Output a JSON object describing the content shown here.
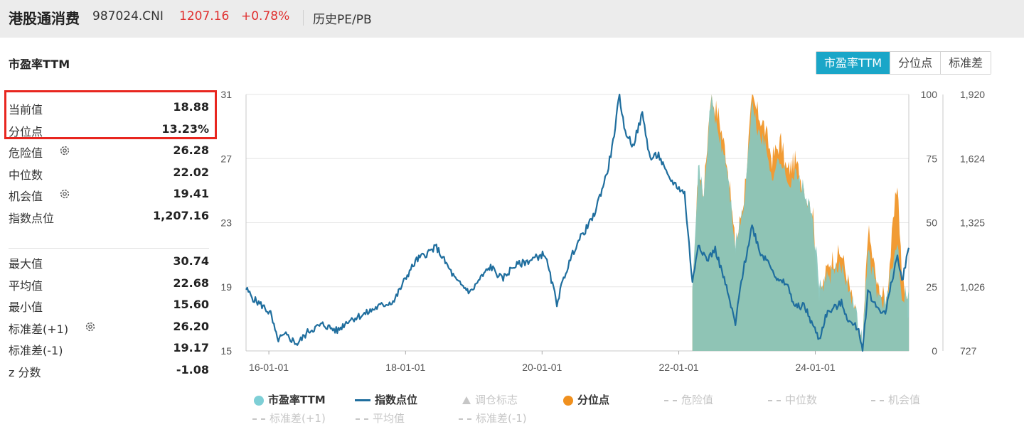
{
  "header": {
    "name": "港股通消费",
    "code": "987024.CNI",
    "price": "1207.16",
    "change": "+0.78%",
    "history_label": "历史PE/PB"
  },
  "section_title": "市盈率TTM",
  "tabs": [
    {
      "label": "市盈率TTM",
      "active": true
    },
    {
      "label": "分位点",
      "active": false
    },
    {
      "label": "标准差",
      "active": false
    }
  ],
  "stats": {
    "current": {
      "label": "当前值",
      "value": "18.88"
    },
    "percentile": {
      "label": "分位点",
      "value": "13.23%"
    },
    "danger": {
      "label": "危险值",
      "value": "26.28"
    },
    "median": {
      "label": "中位数",
      "value": "22.02"
    },
    "opportunity": {
      "label": "机会值",
      "value": "19.41"
    },
    "index_level": {
      "label": "指数点位",
      "value": "1,207.16"
    },
    "max": {
      "label": "最大值",
      "value": "30.74"
    },
    "mean": {
      "label": "平均值",
      "value": "22.68"
    },
    "min": {
      "label": "最小值",
      "value": "15.60"
    },
    "std_plus": {
      "label": "标准差(+1)",
      "value": "26.20"
    },
    "std_minus": {
      "label": "标准差(-1)",
      "value": "19.17"
    },
    "z_score": {
      "label": "z 分数",
      "value": "-1.08"
    }
  },
  "icons": {
    "gear": "gear-icon"
  },
  "colors": {
    "accent": "#1aa6c8",
    "up_red": "#e0302f",
    "highlight_red": "#e8261f",
    "pe_area": "#7ecfd6",
    "index_line": "#1f6e9e",
    "percentile_orange": "#f0901e",
    "grid": "#e6e6e6"
  },
  "chart_data": {
    "type": "line",
    "x_ticks": [
      "16-01-01",
      "18-01-01",
      "20-01-01",
      "22-01-01",
      "24-01-01"
    ],
    "y_left_ticks": [
      "15",
      "19",
      "23",
      "27",
      "31"
    ],
    "y_right1_ticks": [
      "0",
      "25",
      "50",
      "75",
      "100"
    ],
    "y_right2_ticks": [
      "727",
      "1,026",
      "1,325",
      "1,624",
      "1,920"
    ],
    "y_left_range": [
      15,
      31
    ],
    "y_right1_range": [
      0,
      100
    ],
    "y_right2_range": [
      727,
      1920
    ],
    "x_range": [
      "2015-09-01",
      "2025-05-15"
    ],
    "pe_start": "2022-03-15",
    "grid": true,
    "legend_position": "bottom",
    "series": [
      {
        "name": "指数点位",
        "axis": "right2",
        "points": [
          [
            "2015-09-01",
            1015
          ],
          [
            "2015-10-15",
            965
          ],
          [
            "2015-12-01",
            935
          ],
          [
            "2016-01-10",
            900
          ],
          [
            "2016-02-15",
            780
          ],
          [
            "2016-04-01",
            800
          ],
          [
            "2016-06-01",
            760
          ],
          [
            "2016-08-01",
            820
          ],
          [
            "2016-10-15",
            850
          ],
          [
            "2017-01-01",
            820
          ],
          [
            "2017-03-01",
            870
          ],
          [
            "2017-06-01",
            900
          ],
          [
            "2017-08-01",
            930
          ],
          [
            "2017-11-01",
            960
          ],
          [
            "2018-01-10",
            1080
          ],
          [
            "2018-03-01",
            1150
          ],
          [
            "2018-06-15",
            1210
          ],
          [
            "2018-08-01",
            1140
          ],
          [
            "2018-10-01",
            1050
          ],
          [
            "2018-12-15",
            1000
          ],
          [
            "2019-02-01",
            1060
          ],
          [
            "2019-04-01",
            1120
          ],
          [
            "2019-06-01",
            1060
          ],
          [
            "2019-08-01",
            1120
          ],
          [
            "2019-11-01",
            1150
          ],
          [
            "2020-01-15",
            1180
          ],
          [
            "2020-03-20",
            950
          ],
          [
            "2020-05-01",
            1080
          ],
          [
            "2020-07-01",
            1220
          ],
          [
            "2020-10-01",
            1350
          ],
          [
            "2020-12-15",
            1560
          ],
          [
            "2021-01-15",
            1700
          ],
          [
            "2021-02-18",
            1920
          ],
          [
            "2021-03-15",
            1760
          ],
          [
            "2021-05-01",
            1680
          ],
          [
            "2021-06-20",
            1830
          ],
          [
            "2021-08-01",
            1620
          ],
          [
            "2021-09-15",
            1640
          ],
          [
            "2021-11-01",
            1540
          ],
          [
            "2021-12-15",
            1500
          ],
          [
            "2022-02-01",
            1460
          ],
          [
            "2022-03-15",
            1040
          ],
          [
            "2022-04-15",
            1230
          ],
          [
            "2022-06-01",
            1150
          ],
          [
            "2022-07-15",
            1200
          ],
          [
            "2022-09-01",
            1060
          ],
          [
            "2022-10-31",
            850
          ],
          [
            "2022-12-01",
            1050
          ],
          [
            "2023-01-28",
            1310
          ],
          [
            "2023-03-15",
            1180
          ],
          [
            "2023-05-01",
            1140
          ],
          [
            "2023-06-15",
            1050
          ],
          [
            "2023-08-01",
            1040
          ],
          [
            "2023-09-15",
            930
          ],
          [
            "2023-11-01",
            940
          ],
          [
            "2024-01-22",
            780
          ],
          [
            "2024-03-01",
            900
          ],
          [
            "2024-05-20",
            950
          ],
          [
            "2024-07-01",
            860
          ],
          [
            "2024-08-20",
            830
          ],
          [
            "2024-09-10",
            727
          ],
          [
            "2024-10-08",
            1010
          ],
          [
            "2024-11-15",
            940
          ],
          [
            "2025-01-10",
            900
          ],
          [
            "2025-02-20",
            1080
          ],
          [
            "2025-03-15",
            1170
          ],
          [
            "2025-04-08",
            1050
          ],
          [
            "2025-05-15",
            1207
          ]
        ]
      },
      {
        "name": "市盈率TTM",
        "axis": "left",
        "points": [
          [
            "2022-03-15",
            19.5
          ],
          [
            "2022-04-15",
            26.5
          ],
          [
            "2022-05-15",
            24.5
          ],
          [
            "2022-06-20",
            30.74
          ],
          [
            "2022-08-01",
            28.5
          ],
          [
            "2022-09-15",
            26.5
          ],
          [
            "2022-10-31",
            21.5
          ],
          [
            "2022-12-15",
            24.0
          ],
          [
            "2023-01-28",
            30.3
          ],
          [
            "2023-02-20",
            29.0
          ],
          [
            "2023-04-01",
            28.0
          ],
          [
            "2023-05-15",
            26.0
          ],
          [
            "2023-07-01",
            27.0
          ],
          [
            "2023-08-01",
            25.5
          ],
          [
            "2023-09-15",
            26.0
          ],
          [
            "2023-11-01",
            25.0
          ],
          [
            "2023-12-20",
            23.0
          ],
          [
            "2024-01-22",
            19.0
          ],
          [
            "2024-03-15",
            19.6
          ],
          [
            "2024-05-20",
            20.3
          ],
          [
            "2024-07-01",
            19.0
          ],
          [
            "2024-09-10",
            15.6
          ],
          [
            "2024-10-08",
            21.2
          ],
          [
            "2024-12-01",
            18.5
          ],
          [
            "2025-01-15",
            18.0
          ],
          [
            "2025-03-15",
            22.0
          ],
          [
            "2025-04-08",
            18.4
          ],
          [
            "2025-05-15",
            18.88
          ]
        ]
      },
      {
        "name": "分位点",
        "axis": "right1",
        "points": [
          [
            "2022-03-15",
            20
          ],
          [
            "2022-04-15",
            70
          ],
          [
            "2022-05-15",
            62
          ],
          [
            "2022-06-20",
            100
          ],
          [
            "2022-08-01",
            92
          ],
          [
            "2022-09-15",
            75
          ],
          [
            "2022-10-31",
            40
          ],
          [
            "2022-12-15",
            60
          ],
          [
            "2023-01-28",
            98
          ],
          [
            "2023-02-20",
            94
          ],
          [
            "2023-04-01",
            88
          ],
          [
            "2023-05-15",
            75
          ],
          [
            "2023-07-01",
            82
          ],
          [
            "2023-08-01",
            70
          ],
          [
            "2023-09-15",
            74
          ],
          [
            "2023-11-01",
            64
          ],
          [
            "2023-12-20",
            52
          ],
          [
            "2024-01-22",
            20
          ],
          [
            "2024-03-15",
            35
          ],
          [
            "2024-05-20",
            38
          ],
          [
            "2024-07-01",
            25
          ],
          [
            "2024-09-10",
            0
          ],
          [
            "2024-10-08",
            48
          ],
          [
            "2024-12-01",
            24
          ],
          [
            "2025-01-15",
            20
          ],
          [
            "2025-03-15",
            67
          ],
          [
            "2025-04-08",
            30
          ],
          [
            "2025-05-15",
            13.23
          ]
        ]
      }
    ],
    "legend": [
      {
        "name": "市盈率TTM",
        "active": true
      },
      {
        "name": "指数点位",
        "active": true
      },
      {
        "name": "调仓标志",
        "active": false
      },
      {
        "name": "分位点",
        "active": true
      },
      {
        "name": "危险值",
        "active": false
      },
      {
        "name": "中位数",
        "active": false
      },
      {
        "name": "机会值",
        "active": false
      },
      {
        "name": "标准差(+1)",
        "active": false
      },
      {
        "name": "平均值",
        "active": false
      },
      {
        "name": "标准差(-1)",
        "active": false
      }
    ]
  }
}
